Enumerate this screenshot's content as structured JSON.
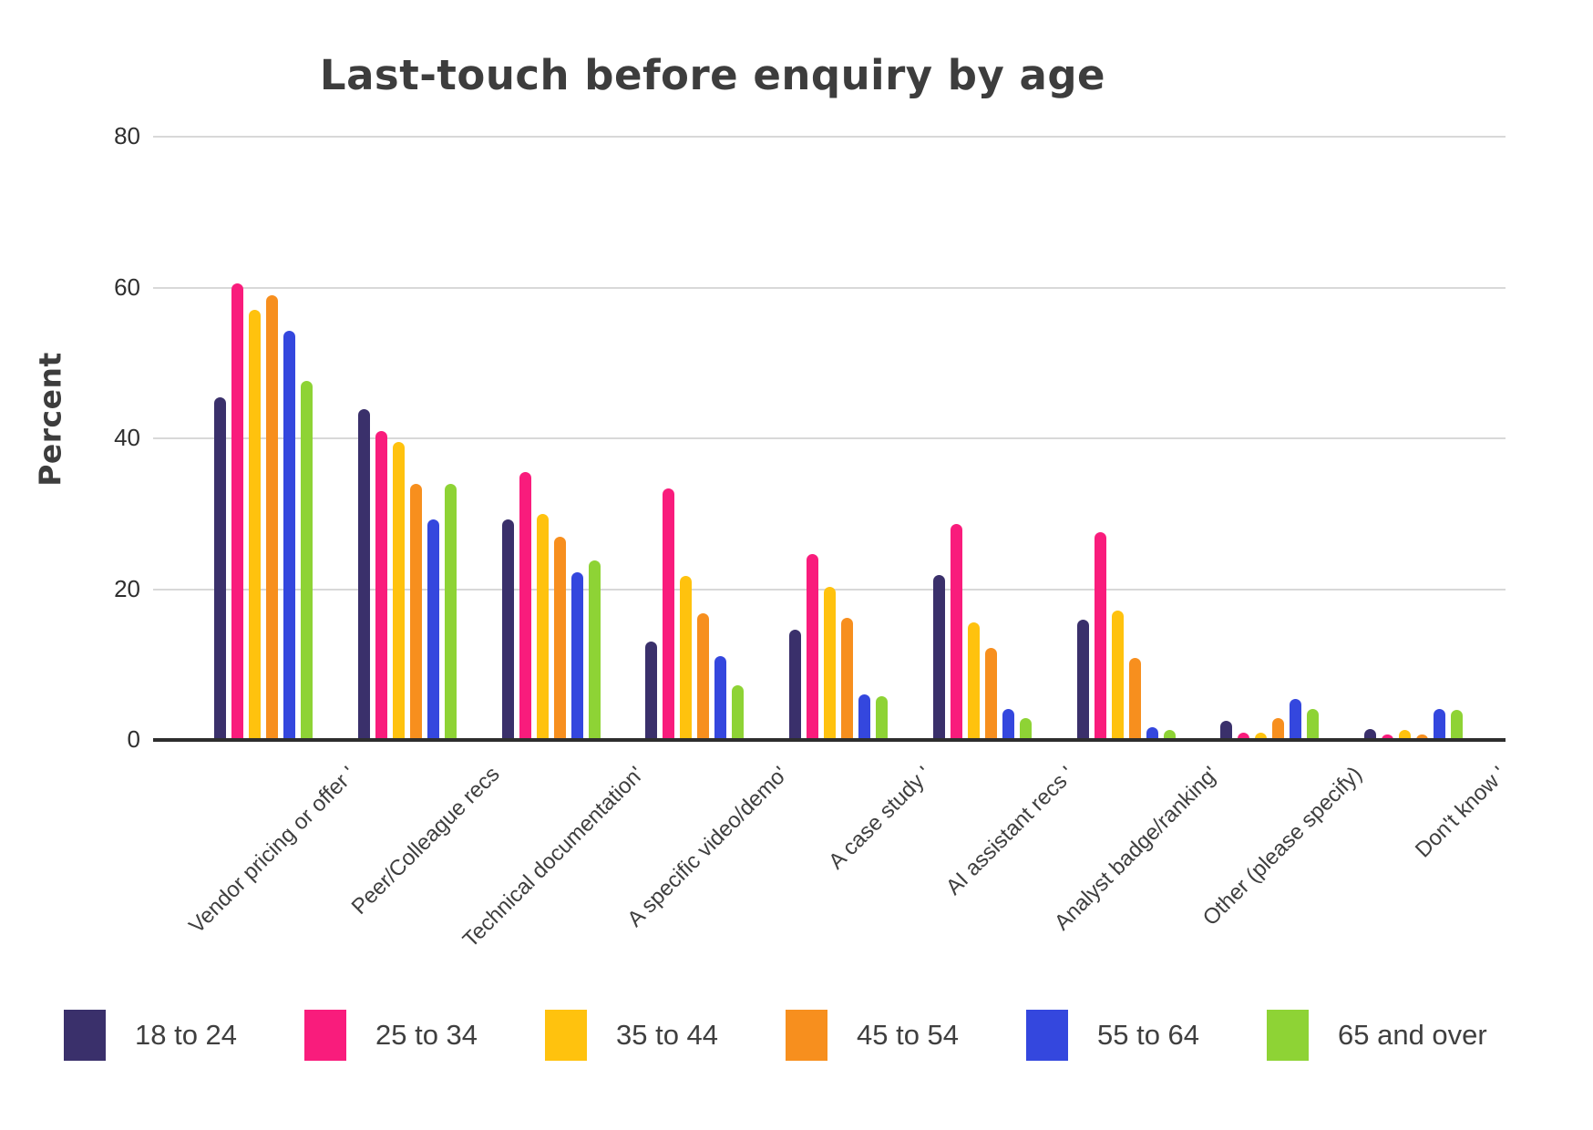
{
  "header": {
    "title": "Last-touch before enquiry by age"
  },
  "y_axis": {
    "label": "Percent"
  },
  "colors": {
    "title_text": "#3d3d3d",
    "axis_text": "#3f3f3f",
    "tick_text": "#2f2f2f",
    "gridline": "#d8d8d8",
    "axis_line": "#2e2e2e",
    "background": "#ffffff"
  },
  "chart_data": {
    "type": "bar",
    "title": "Last-touch before enquiry by age",
    "xlabel": "",
    "ylabel": "Percent",
    "ylim": [
      0,
      80
    ],
    "yticks": [
      80,
      60,
      40,
      20,
      0
    ],
    "grid": true,
    "legend_position": "bottom",
    "categories": [
      "Vendor pricing or offer '",
      "Peer/Colleague recs",
      "Technical documentation'",
      "A specific video/demo'",
      "A case study '",
      "AI assistant recs '",
      "Analyst badge/ranking'",
      "Other (please specify)",
      "Don't know '"
    ],
    "series": [
      {
        "name": "18 to 24",
        "color": "#3a306b",
        "values": [
          45.4,
          43.9,
          29.2,
          13.0,
          14.6,
          21.9,
          15.9,
          2.6,
          1.4
        ]
      },
      {
        "name": "25 to 34",
        "color": "#f91c7c",
        "values": [
          60.6,
          41.0,
          35.5,
          33.3,
          24.7,
          28.6,
          27.6,
          1.0,
          0.7
        ]
      },
      {
        "name": "35 to 44",
        "color": "#ffc20e",
        "values": [
          57.0,
          39.5,
          30.0,
          21.8,
          20.3,
          15.6,
          17.2,
          1.0,
          1.3
        ]
      },
      {
        "name": "45 to 54",
        "color": "#f78f1e",
        "values": [
          59.0,
          33.9,
          26.9,
          16.8,
          16.2,
          12.2,
          10.9,
          2.9,
          0.7
        ]
      },
      {
        "name": "55 to 64",
        "color": "#3447de",
        "values": [
          54.3,
          29.3,
          22.2,
          11.1,
          6.0,
          4.1,
          1.7,
          5.4,
          4.1
        ]
      },
      {
        "name": "65 and over",
        "color": "#8ed335",
        "values": [
          47.6,
          34.0,
          23.8,
          7.2,
          5.8,
          2.9,
          1.3,
          4.1,
          4.0
        ]
      }
    ]
  }
}
